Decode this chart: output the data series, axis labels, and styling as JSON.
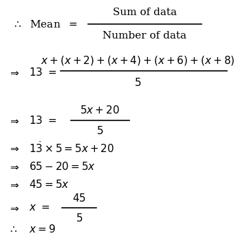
{
  "bg_color": "#ffffff",
  "text_color": "#000000",
  "figsize": [
    3.43,
    3.43
  ],
  "dpi": 100
}
